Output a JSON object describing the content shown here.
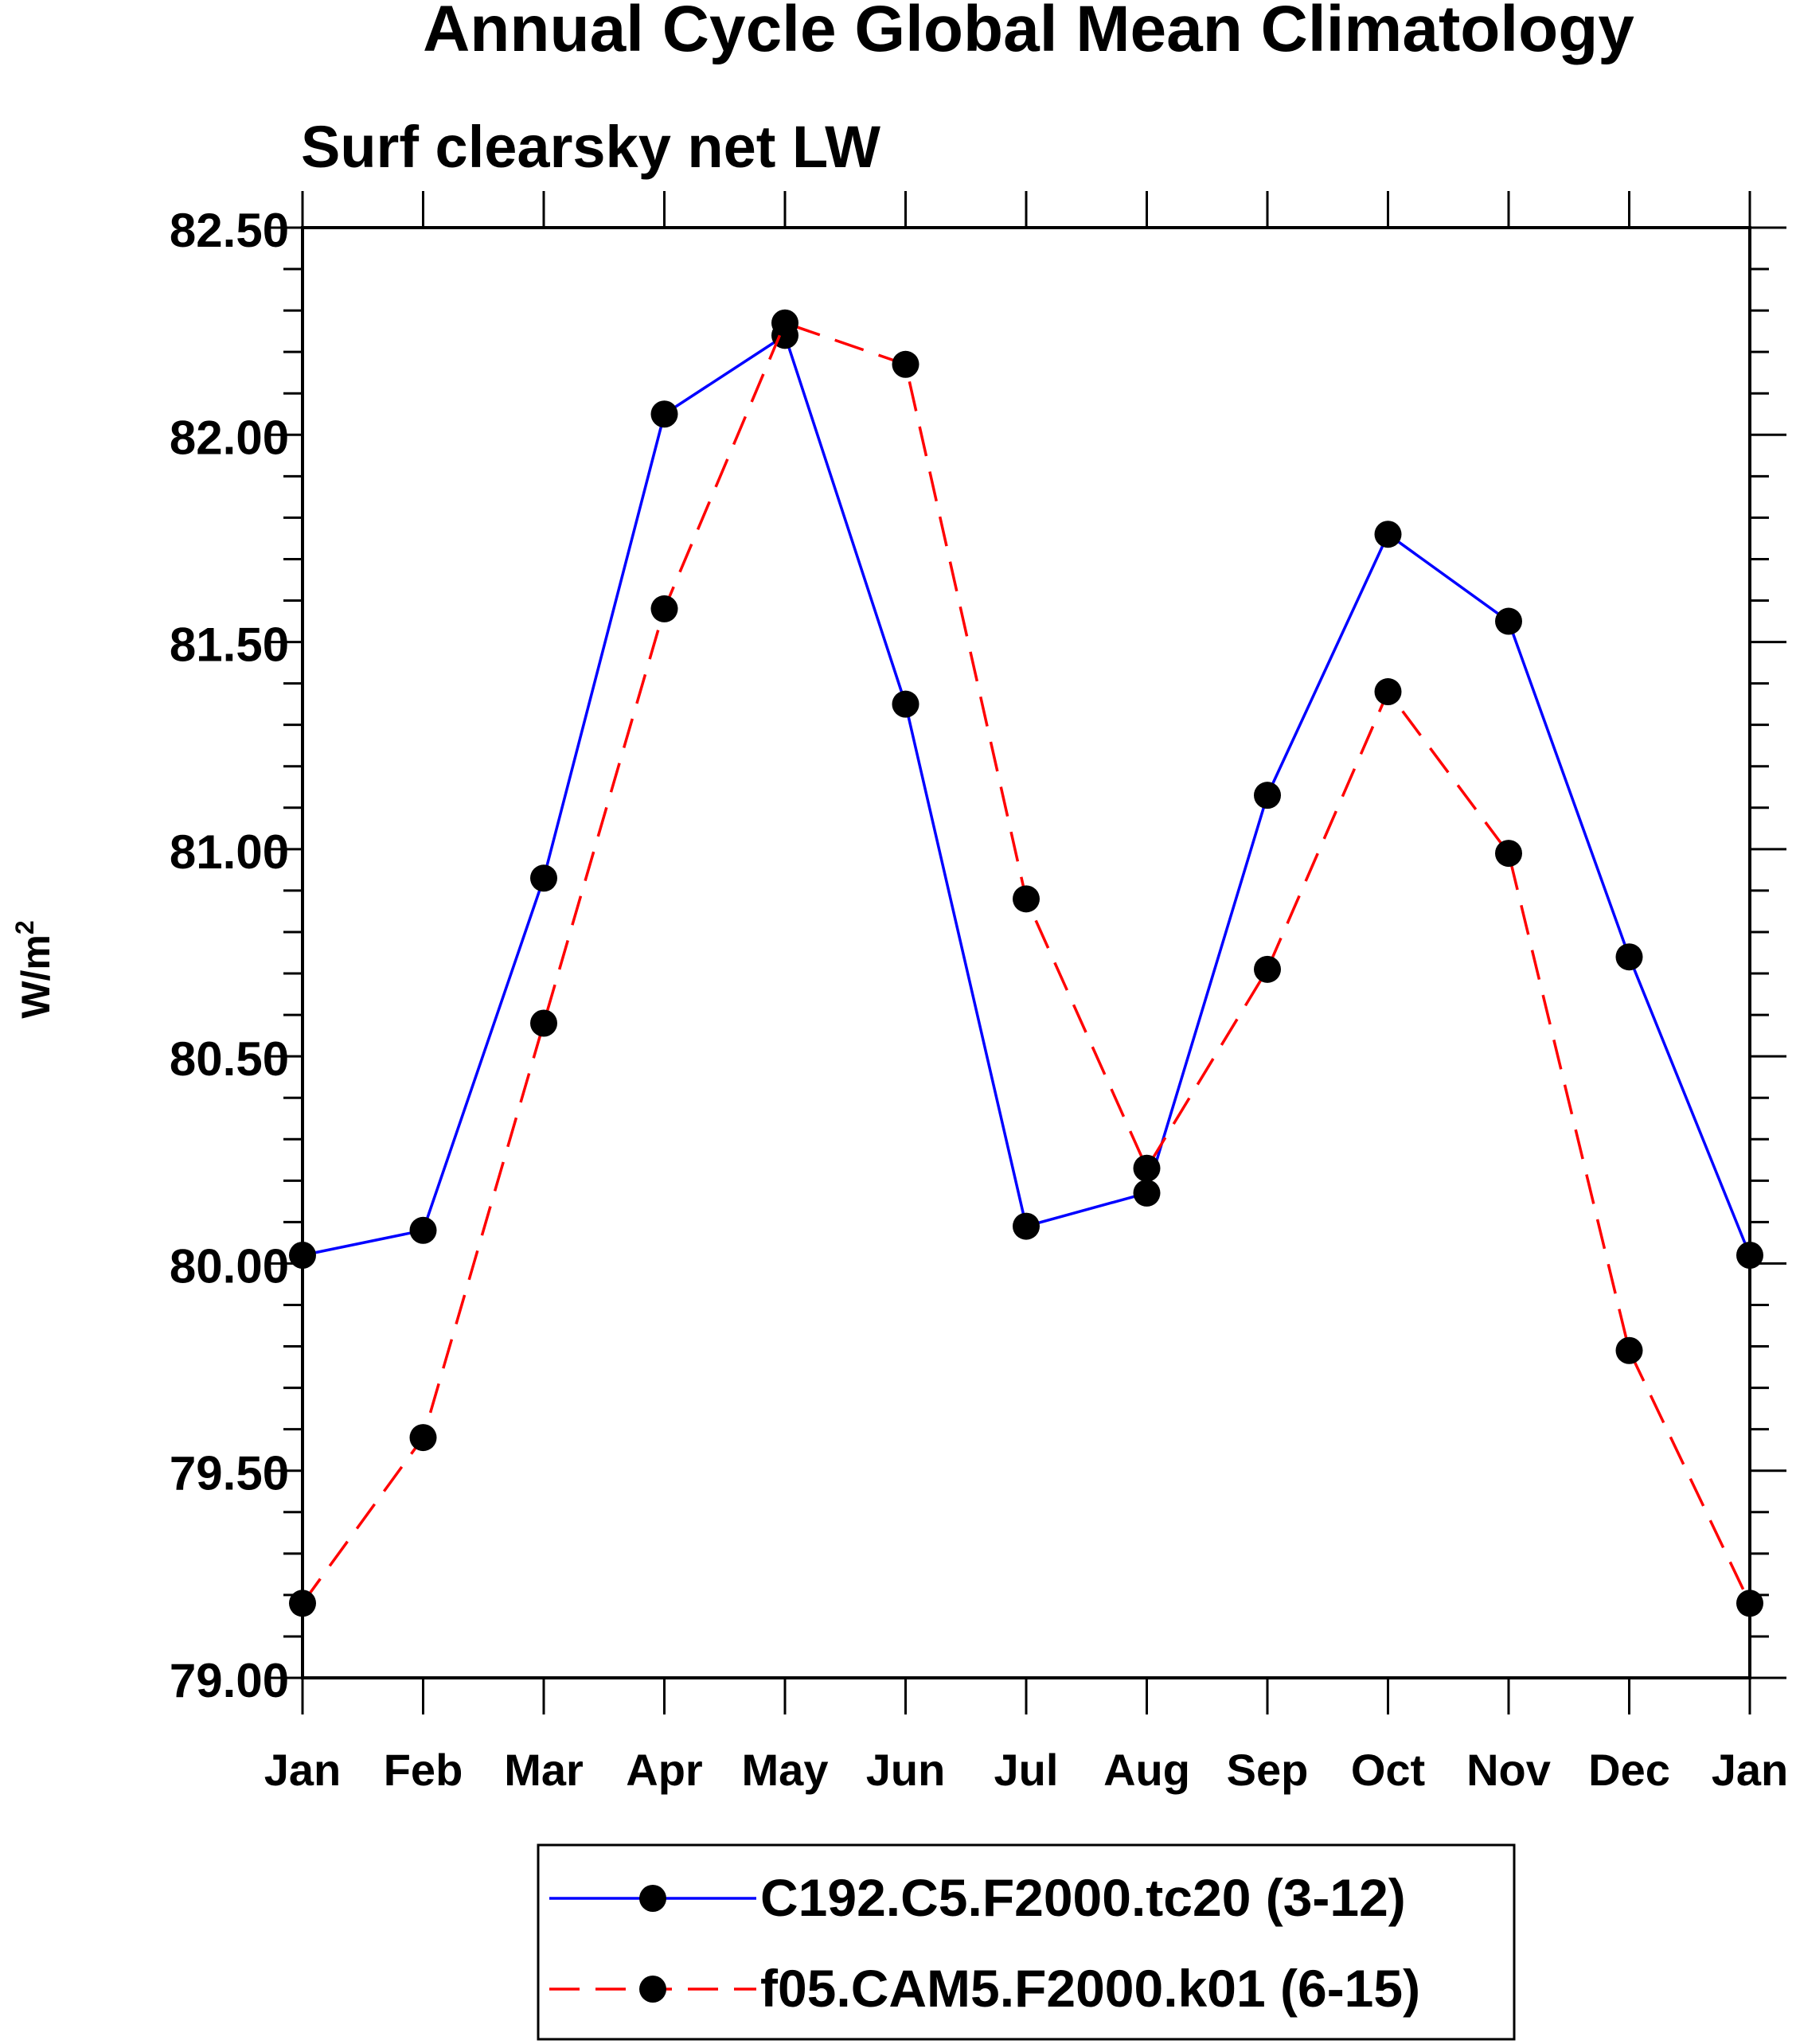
{
  "chart_data": {
    "type": "line",
    "title": "Annual Cycle Global Mean Climatology",
    "subtitle": "Surf clearsky net LW",
    "xlabel": "",
    "ylabel": "W/m",
    "ylabel_sup": "2",
    "categories": [
      "Jan",
      "Feb",
      "Mar",
      "Apr",
      "May",
      "Jun",
      "Jul",
      "Aug",
      "Sep",
      "Oct",
      "Nov",
      "Dec",
      "Jan"
    ],
    "ylim": [
      79.0,
      82.5
    ],
    "yticks": [
      79.0,
      79.5,
      80.0,
      80.5,
      81.0,
      81.5,
      82.0,
      82.5
    ],
    "ytick_labels": [
      "79.00",
      "79.50",
      "80.00",
      "80.50",
      "81.00",
      "81.50",
      "82.00",
      "82.50"
    ],
    "grid": false,
    "legend_position": "bottom-center",
    "series": [
      {
        "name": "C192.C5.F2000.tc20 (3-12)",
        "color": "#0000ff",
        "style": "solid",
        "marker": "circle",
        "values": [
          80.02,
          80.08,
          80.93,
          82.05,
          82.24,
          81.35,
          80.09,
          80.17,
          81.13,
          81.76,
          81.55,
          80.74,
          80.02
        ]
      },
      {
        "name": "f05.CAM5.F2000.k01 (6-15)",
        "color": "#ff0000",
        "style": "dashed",
        "marker": "circle",
        "values": [
          79.18,
          79.58,
          80.58,
          81.58,
          82.27,
          82.17,
          80.88,
          80.23,
          80.71,
          81.38,
          80.99,
          79.79,
          79.18
        ]
      }
    ]
  }
}
